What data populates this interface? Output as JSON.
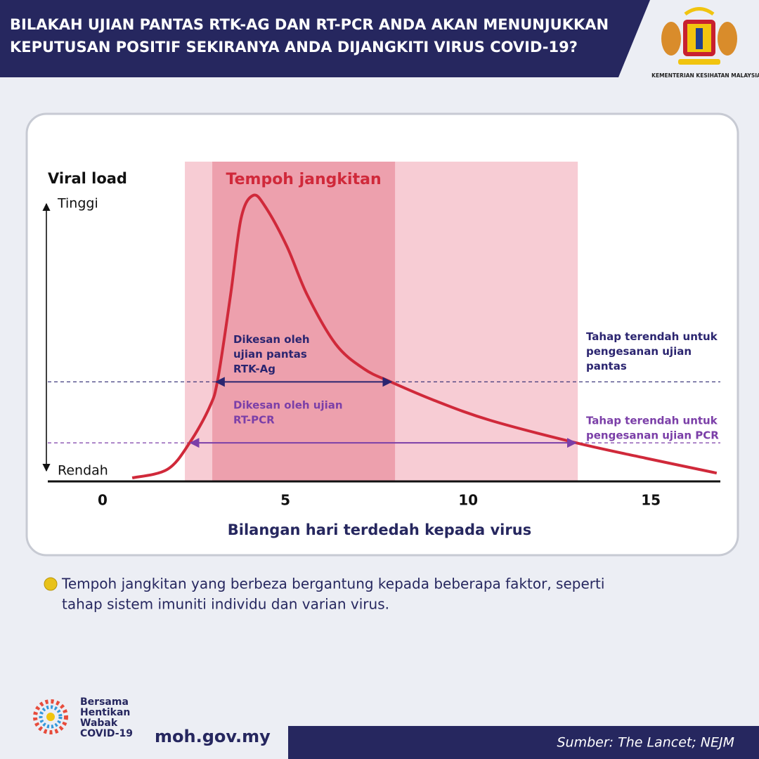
{
  "header": {
    "title": [
      "BILAKAH UJIAN PANTAS RTK-AG DAN RT-PCR ANDA AKAN MENUNJUKKAN",
      "KEPUTUSAN POSITIF SEKIRANYA ANDA DIJANGKITI VIRUS COVID-19?"
    ],
    "ministry": "KEMENTERIAN KESIHATAN MALAYSIA"
  },
  "chart_data": {
    "type": "line",
    "y_label": "Viral load",
    "x_label": "Bilangan hari terdedah kepada virus",
    "x": [
      0.81,
      1.77,
      2.38,
      2.92,
      3.15,
      3.5,
      3.79,
      4.12,
      4.46,
      5.04,
      5.6,
      6.38,
      7.15,
      7.88,
      9.08,
      10.6,
      12.96,
      14.85,
      16.8
    ],
    "series": [
      {
        "color": "#d0293a",
        "values": [
          0,
          3,
          12.4,
          24.9,
          34.8,
          64.7,
          92,
          100,
          95.8,
          82,
          64.7,
          47.3,
          38.6,
          34,
          27.4,
          20.4,
          12.4,
          7,
          1.7
        ]
      }
    ],
    "xlim": [
      -1.5,
      16.9
    ],
    "xticks": [
      0,
      5,
      10,
      15
    ],
    "ylim": [
      0,
      100
    ],
    "yticks": [
      {
        "value": 0,
        "label": "Rendah"
      },
      {
        "value": 100,
        "label": "Tinggi"
      }
    ],
    "regions": [
      {
        "start": 2.25,
        "end": 13,
        "color": "#f7ccd4"
      },
      {
        "start": 3,
        "end": 8,
        "color": "#eda0ad",
        "label": "Tempoh jangkitan"
      }
    ],
    "thresholds": [
      {
        "value": 34,
        "color": "#2b2570",
        "lines": [
          "Tahap terendah untuk",
          "pengesanan ujian",
          "pantas"
        ]
      },
      {
        "value": 12.4,
        "color": "#7b3fa8",
        "lines": [
          "Tahap terendah untuk",
          "pengesanan ujian PCR"
        ]
      }
    ],
    "ranges": [
      {
        "start": 3.1,
        "end": 7.9,
        "value": 34,
        "color": "#2b2570",
        "lines": [
          "Dikesan oleh",
          "ujian pantas",
          "RTK-Ag"
        ]
      },
      {
        "start": 2.4,
        "end": 12.95,
        "value": 12.4,
        "color": "#7b3fa8",
        "lines": [
          "Dikesan oleh ujian",
          "RT-PCR"
        ]
      }
    ]
  },
  "note": [
    "Tempoh jangkitan yang berbeza bergantung kepada beberapa faktor, seperti",
    "tahap sistem imuniti individu dan varian virus."
  ],
  "footer": {
    "campaign": [
      "Bersama",
      "Hentikan",
      "Wabak",
      "COVID-19"
    ],
    "website": "moh.gov.my",
    "source": "Sumber: The Lancet; NEJM"
  }
}
